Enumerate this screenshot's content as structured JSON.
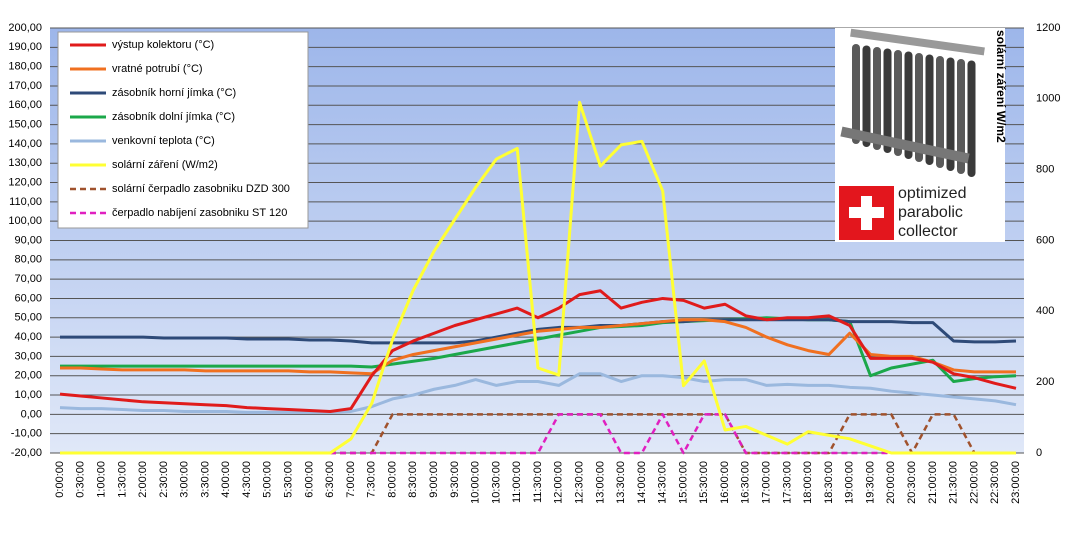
{
  "chart_data": {
    "type": "line",
    "y2label": "solární záření W/m2",
    "annotations": [
      "optimized",
      "parabolic",
      "collector"
    ],
    "legend": "top-left",
    "grid": true,
    "categories": [
      "0:00:00",
      "0:30:00",
      "1:00:00",
      "1:30:00",
      "2:00:00",
      "2:30:00",
      "3:00:00",
      "3:30:00",
      "4:00:00",
      "4:30:00",
      "5:00:00",
      "5:30:00",
      "6:00:00",
      "6:30:00",
      "7:00:00",
      "7:30:00",
      "8:00:00",
      "8:30:00",
      "9:00:00",
      "9:30:00",
      "10:00:00",
      "10:30:00",
      "11:00:00",
      "11:30:00",
      "12:00:00",
      "12:30:00",
      "13:00:00",
      "13:30:00",
      "14:00:00",
      "14:30:00",
      "15:00:00",
      "15:30:00",
      "16:00:00",
      "16:30:00",
      "17:00:00",
      "17:30:00",
      "18:00:00",
      "18:30:00",
      "19:00:00",
      "19:30:00",
      "20:00:00",
      "20:30:00",
      "21:00:00",
      "21:30:00",
      "22:00:00",
      "22:30:00",
      "23:00:00"
    ],
    "ylim": [
      -20,
      200
    ],
    "yticks": [
      {
        "value": -20,
        "label": "-20,00"
      },
      {
        "value": -10,
        "label": "-10,00"
      },
      {
        "value": 0,
        "label": "0,00"
      },
      {
        "value": 10,
        "label": "10,00"
      },
      {
        "value": 20,
        "label": "20,00"
      },
      {
        "value": 30,
        "label": "30,00"
      },
      {
        "value": 40,
        "label": "40,00"
      },
      {
        "value": 50,
        "label": "50,00"
      },
      {
        "value": 60,
        "label": "60,00"
      },
      {
        "value": 70,
        "label": "70,00"
      },
      {
        "value": 80,
        "label": "80,00"
      },
      {
        "value": 90,
        "label": "90,00"
      },
      {
        "value": 100,
        "label": "100,00"
      },
      {
        "value": 110,
        "label": "110,00"
      },
      {
        "value": 120,
        "label": "120,00"
      },
      {
        "value": 130,
        "label": "130,00"
      },
      {
        "value": 140,
        "label": "140,00"
      },
      {
        "value": 150,
        "label": "150,00"
      },
      {
        "value": 160,
        "label": "160,00"
      },
      {
        "value": 170,
        "label": "170,00"
      },
      {
        "value": 180,
        "label": "180,00"
      },
      {
        "value": 190,
        "label": "190,00"
      },
      {
        "value": 200,
        "label": "200,00"
      }
    ],
    "y2lim": [
      0,
      1200
    ],
    "y2ticks": [
      0,
      200,
      400,
      600,
      800,
      1000,
      1200
    ],
    "series": [
      {
        "name": "výstup kolektoru (°C)",
        "color": "#e01b1b",
        "values": [
          10.5,
          9.5,
          8.5,
          7.5,
          6.5,
          6,
          5.5,
          5,
          4.5,
          3.5,
          3,
          2.5,
          2,
          1.5,
          3,
          20,
          33,
          38,
          42,
          46,
          49,
          52,
          55,
          50,
          55,
          62,
          64,
          55,
          58,
          60,
          59,
          55,
          57,
          51,
          49,
          50,
          50,
          51,
          46,
          29,
          29,
          29,
          27,
          21,
          19,
          16,
          13.5
        ]
      },
      {
        "name": "vratné potrubí (°C)",
        "color": "#f07020",
        "values": [
          24,
          24,
          23.5,
          23,
          23,
          23,
          23,
          22.5,
          22.5,
          22.5,
          22.5,
          22.5,
          22,
          22,
          21.5,
          21,
          28,
          31,
          33,
          35,
          37,
          39,
          41,
          43,
          44,
          45,
          45,
          46,
          47,
          48,
          49,
          49,
          48,
          45,
          40,
          36,
          33,
          31,
          42,
          31,
          30,
          30,
          27,
          23,
          22,
          22,
          22
        ]
      },
      {
        "name": "zásobník horní jímka (°C)",
        "color": "#2e4a78",
        "values": [
          40,
          40,
          40,
          40,
          40,
          39.5,
          39.5,
          39.5,
          39.5,
          39,
          39,
          39,
          38.5,
          38.5,
          38,
          37,
          37,
          37,
          37,
          37,
          38,
          40,
          42,
          44,
          45,
          45,
          46,
          46,
          47,
          48,
          48,
          49,
          49,
          49,
          49,
          49,
          49,
          49,
          48,
          48,
          48,
          47.5,
          47.5,
          38,
          37.5,
          37.5,
          38
        ]
      },
      {
        "name": "zásobník dolní jímka  (°C)",
        "color": "#1ba84a",
        "values": [
          25,
          25,
          25,
          25,
          25,
          25,
          25,
          25,
          25,
          25,
          25,
          25,
          25,
          25,
          25,
          24.5,
          26,
          27.5,
          29,
          31,
          33,
          35,
          37,
          39,
          41,
          43,
          45,
          45.5,
          46,
          47.5,
          48,
          48.5,
          49,
          49.5,
          50,
          49.5,
          49,
          49,
          48,
          20,
          24,
          26,
          28,
          17,
          18.5,
          19.5,
          20
        ]
      },
      {
        "name": "venkovní teplota (°C)",
        "color": "#9ab8de",
        "values": [
          3.5,
          3,
          3,
          2.5,
          2,
          2,
          1.5,
          1.5,
          1.5,
          1,
          1,
          1,
          1,
          1,
          1.5,
          4,
          8,
          10,
          13,
          15,
          18,
          15,
          17,
          17,
          15,
          21,
          21,
          17,
          20,
          20,
          19,
          17,
          18,
          18,
          15,
          15.5,
          15,
          15,
          14,
          13.5,
          12,
          11,
          10,
          9,
          8,
          7,
          5
        ]
      },
      {
        "name": "solární záření  (W/m2)",
        "color": "#ffff33",
        "axis": "y2",
        "values": [
          0,
          0,
          0,
          0,
          0,
          0,
          0,
          0,
          0,
          0,
          0,
          0,
          0,
          0,
          40,
          140,
          320,
          460,
          570,
          660,
          750,
          830,
          860,
          240,
          220,
          990,
          810,
          870,
          880,
          740,
          190,
          260,
          65,
          75,
          50,
          25,
          60,
          50,
          40,
          20,
          0,
          0,
          0,
          0,
          0,
          0,
          0
        ]
      },
      {
        "name": "solární čerpadlo zasobniku  DZD 300",
        "color": "#a0522d",
        "style": "dashed",
        "values": [
          -20,
          -20,
          -20,
          -20,
          -20,
          -20,
          -20,
          -20,
          -20,
          -20,
          -20,
          -20,
          -20,
          -20,
          -20,
          -20,
          0,
          0,
          0,
          0,
          0,
          0,
          0,
          0,
          0,
          0,
          0,
          0,
          0,
          0,
          0,
          0,
          0,
          -20,
          -20,
          -20,
          -20,
          -20,
          0,
          0,
          0,
          -20,
          0,
          0,
          -20,
          -20,
          -20
        ]
      },
      {
        "name": "čerpadlo nabíjení  zasobniku ST 120",
        "color": "#e020c0",
        "style": "dashed",
        "values": [
          -20,
          -20,
          -20,
          -20,
          -20,
          -20,
          -20,
          -20,
          -20,
          -20,
          -20,
          -20,
          -20,
          -20,
          -20,
          -20,
          -20,
          -20,
          -20,
          -20,
          -20,
          -20,
          -20,
          -20,
          0,
          0,
          0,
          -20,
          -20,
          0,
          -20,
          0,
          0,
          -20,
          -20,
          -20,
          -20,
          -20,
          -20,
          -20,
          -20,
          -20,
          -20,
          -20,
          -20,
          -20,
          -20
        ]
      }
    ]
  }
}
